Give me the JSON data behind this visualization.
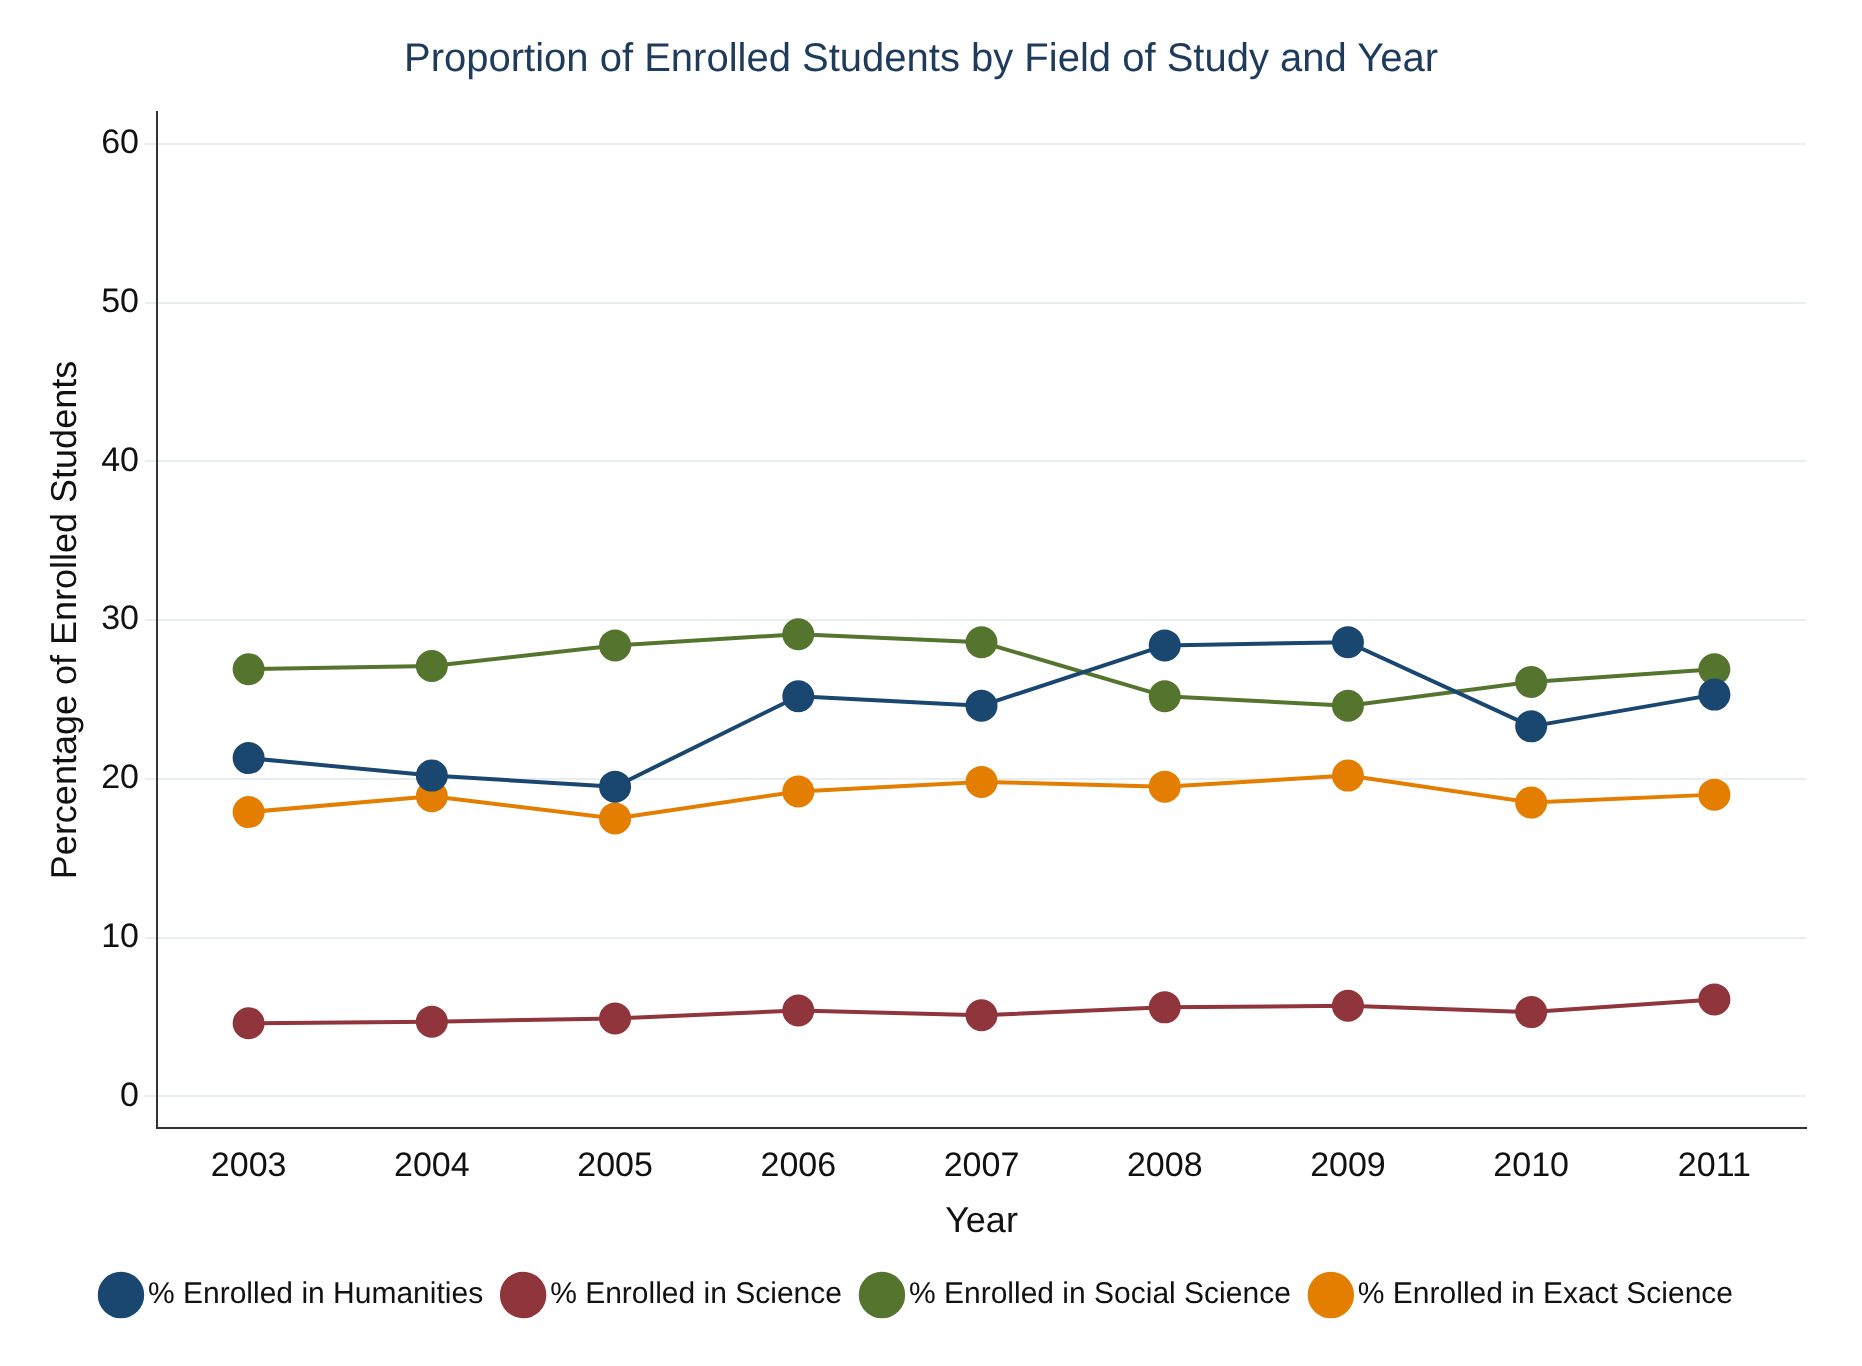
{
  "chart_data": {
    "type": "line",
    "title": "Proportion of Enrolled Students by Field of Study and Year",
    "xlabel": "Year",
    "ylabel": "Percentage of Enrolled Students",
    "categories": [
      "2003",
      "2004",
      "2005",
      "2006",
      "2007",
      "2008",
      "2009",
      "2010",
      "2011"
    ],
    "series": [
      {
        "name": "% Enrolled in Humanities",
        "color": "#1a476f",
        "values": [
          21.3,
          20.2,
          19.5,
          25.2,
          24.6,
          28.4,
          28.6,
          23.3,
          25.3
        ]
      },
      {
        "name": "% Enrolled in Science",
        "color": "#90353b",
        "values": [
          4.6,
          4.7,
          4.9,
          5.4,
          5.1,
          5.6,
          5.7,
          5.3,
          6.1
        ]
      },
      {
        "name": "% Enrolled in Social Science",
        "color": "#55752f",
        "values": [
          26.9,
          27.1,
          28.4,
          29.1,
          28.6,
          25.2,
          24.6,
          26.1,
          26.9
        ]
      },
      {
        "name": "% Enrolled in Exact Science",
        "color": "#e37e00",
        "values": [
          17.9,
          18.9,
          17.5,
          19.2,
          19.8,
          19.5,
          20.2,
          18.5,
          19.0
        ]
      }
    ],
    "ylim": [
      -2,
      62
    ],
    "yticks": [
      0,
      10,
      20,
      30,
      40,
      50,
      60
    ],
    "grid": "y",
    "legend": "bottom",
    "marker": "circle",
    "line_style": "solid"
  }
}
